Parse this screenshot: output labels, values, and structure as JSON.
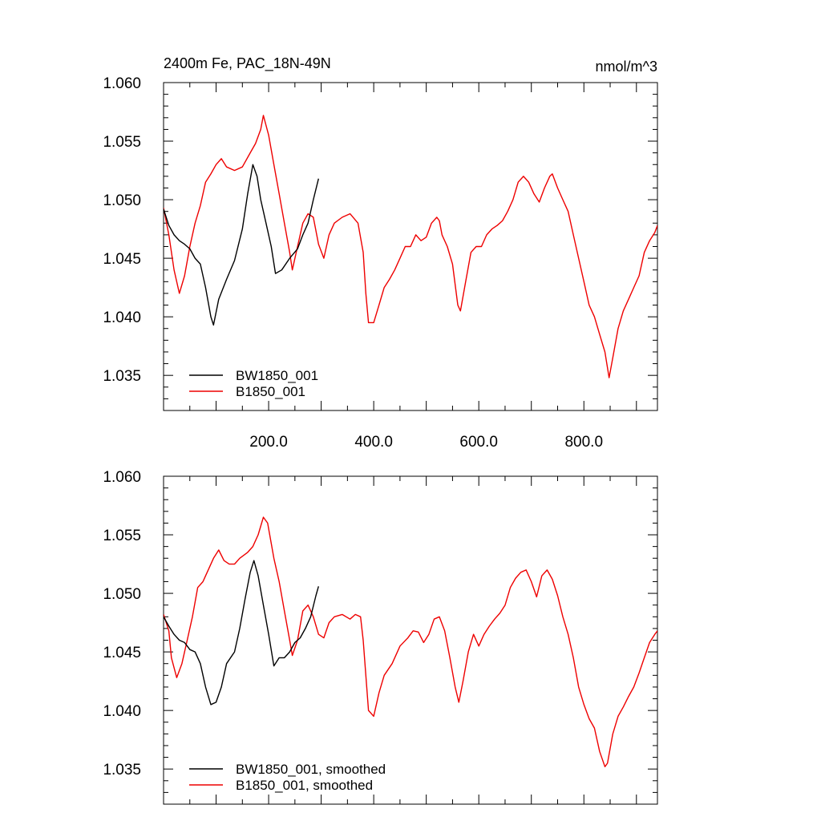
{
  "chart_data": [
    {
      "type": "line",
      "title": "2400m Fe, PAC_18N-49N",
      "units": "nmol/m^3",
      "xlim": [
        0,
        940
      ],
      "ylim": [
        1.032,
        1.06
      ],
      "x_ticks": [
        "200.0",
        "400.0",
        "600.0",
        "800.0"
      ],
      "x_tick_values": [
        200,
        400,
        600,
        800
      ],
      "y_ticks": [
        "1.035",
        "1.040",
        "1.045",
        "1.050",
        "1.055",
        "1.060"
      ],
      "y_tick_values": [
        1.035,
        1.04,
        1.045,
        1.05,
        1.055,
        1.06
      ],
      "legend": {
        "position": "bottom-left"
      },
      "series": [
        {
          "name": "BW1850_001",
          "color": "#000000",
          "points": [
            [
              0,
              1.0492
            ],
            [
              10,
              1.0478
            ],
            [
              20,
              1.047
            ],
            [
              30,
              1.0465
            ],
            [
              40,
              1.0462
            ],
            [
              50,
              1.0458
            ],
            [
              60,
              1.045
            ],
            [
              70,
              1.0445
            ],
            [
              80,
              1.0425
            ],
            [
              90,
              1.04
            ],
            [
              95,
              1.0393
            ],
            [
              105,
              1.0415
            ],
            [
              120,
              1.0432
            ],
            [
              135,
              1.0448
            ],
            [
              150,
              1.0475
            ],
            [
              160,
              1.0505
            ],
            [
              170,
              1.053
            ],
            [
              178,
              1.052
            ],
            [
              185,
              1.05
            ],
            [
              195,
              1.048
            ],
            [
              205,
              1.046
            ],
            [
              213,
              1.0437
            ],
            [
              225,
              1.044
            ],
            [
              240,
              1.045
            ],
            [
              255,
              1.0458
            ],
            [
              265,
              1.047
            ],
            [
              275,
              1.048
            ],
            [
              285,
              1.05
            ],
            [
              295,
              1.0518
            ]
          ]
        },
        {
          "name": "B1850_001",
          "color": "#ee0000",
          "points": [
            [
              0,
              1.0493
            ],
            [
              10,
              1.047
            ],
            [
              20,
              1.044
            ],
            [
              30,
              1.042
            ],
            [
              40,
              1.0435
            ],
            [
              50,
              1.046
            ],
            [
              60,
              1.048
            ],
            [
              70,
              1.0495
            ],
            [
              80,
              1.0515
            ],
            [
              90,
              1.0522
            ],
            [
              100,
              1.053
            ],
            [
              110,
              1.0535
            ],
            [
              120,
              1.0528
            ],
            [
              135,
              1.0525
            ],
            [
              150,
              1.0528
            ],
            [
              165,
              1.054
            ],
            [
              175,
              1.0548
            ],
            [
              185,
              1.056
            ],
            [
              190,
              1.0572
            ],
            [
              200,
              1.0555
            ],
            [
              210,
              1.053
            ],
            [
              220,
              1.0505
            ],
            [
              230,
              1.048
            ],
            [
              240,
              1.0455
            ],
            [
              245,
              1.044
            ],
            [
              255,
              1.046
            ],
            [
              265,
              1.048
            ],
            [
              275,
              1.0488
            ],
            [
              285,
              1.0485
            ],
            [
              295,
              1.0462
            ],
            [
              305,
              1.045
            ],
            [
              315,
              1.047
            ],
            [
              325,
              1.048
            ],
            [
              340,
              1.0485
            ],
            [
              355,
              1.0488
            ],
            [
              370,
              1.048
            ],
            [
              380,
              1.0455
            ],
            [
              385,
              1.042
            ],
            [
              390,
              1.0395
            ],
            [
              400,
              1.0395
            ],
            [
              410,
              1.041
            ],
            [
              420,
              1.0425
            ],
            [
              430,
              1.0432
            ],
            [
              440,
              1.044
            ],
            [
              450,
              1.045
            ],
            [
              460,
              1.046
            ],
            [
              470,
              1.046
            ],
            [
              480,
              1.047
            ],
            [
              490,
              1.0465
            ],
            [
              500,
              1.0468
            ],
            [
              510,
              1.048
            ],
            [
              520,
              1.0485
            ],
            [
              525,
              1.0482
            ],
            [
              530,
              1.047
            ],
            [
              540,
              1.046
            ],
            [
              550,
              1.0445
            ],
            [
              560,
              1.041
            ],
            [
              565,
              1.0405
            ],
            [
              575,
              1.043
            ],
            [
              585,
              1.0455
            ],
            [
              595,
              1.046
            ],
            [
              605,
              1.046
            ],
            [
              615,
              1.047
            ],
            [
              625,
              1.0475
            ],
            [
              635,
              1.0478
            ],
            [
              645,
              1.0482
            ],
            [
              655,
              1.049
            ],
            [
              665,
              1.05
            ],
            [
              675,
              1.0515
            ],
            [
              685,
              1.052
            ],
            [
              695,
              1.0515
            ],
            [
              705,
              1.0505
            ],
            [
              715,
              1.0498
            ],
            [
              725,
              1.051
            ],
            [
              735,
              1.052
            ],
            [
              740,
              1.0522
            ],
            [
              750,
              1.051
            ],
            [
              760,
              1.05
            ],
            [
              770,
              1.049
            ],
            [
              780,
              1.047
            ],
            [
              790,
              1.045
            ],
            [
              800,
              1.043
            ],
            [
              810,
              1.041
            ],
            [
              820,
              1.04
            ],
            [
              830,
              1.0385
            ],
            [
              840,
              1.037
            ],
            [
              848,
              1.0348
            ],
            [
              855,
              1.0365
            ],
            [
              865,
              1.039
            ],
            [
              875,
              1.0405
            ],
            [
              885,
              1.0415
            ],
            [
              895,
              1.0425
            ],
            [
              905,
              1.0435
            ],
            [
              915,
              1.0455
            ],
            [
              925,
              1.0465
            ],
            [
              935,
              1.0472
            ],
            [
              940,
              1.0478
            ]
          ]
        }
      ]
    },
    {
      "type": "line",
      "title": "",
      "xlim": [
        0,
        940
      ],
      "ylim": [
        1.032,
        1.06
      ],
      "x_ticks": [],
      "y_ticks": [
        "1.035",
        "1.040",
        "1.045",
        "1.050",
        "1.055",
        "1.060"
      ],
      "y_tick_values": [
        1.035,
        1.04,
        1.045,
        1.05,
        1.055,
        1.06
      ],
      "legend": {
        "position": "bottom-left"
      },
      "series": [
        {
          "name": "BW1850_001, smoothed",
          "color": "#000000",
          "points": [
            [
              0,
              1.048
            ],
            [
              10,
              1.0472
            ],
            [
              20,
              1.0465
            ],
            [
              30,
              1.046
            ],
            [
              40,
              1.0458
            ],
            [
              50,
              1.0452
            ],
            [
              60,
              1.045
            ],
            [
              70,
              1.044
            ],
            [
              80,
              1.042
            ],
            [
              90,
              1.0405
            ],
            [
              100,
              1.0407
            ],
            [
              110,
              1.042
            ],
            [
              120,
              1.044
            ],
            [
              135,
              1.045
            ],
            [
              145,
              1.047
            ],
            [
              155,
              1.0495
            ],
            [
              165,
              1.0518
            ],
            [
              172,
              1.0528
            ],
            [
              180,
              1.0515
            ],
            [
              190,
              1.049
            ],
            [
              200,
              1.0465
            ],
            [
              210,
              1.0438
            ],
            [
              220,
              1.0445
            ],
            [
              230,
              1.0445
            ],
            [
              240,
              1.045
            ],
            [
              250,
              1.0458
            ],
            [
              260,
              1.0462
            ],
            [
              270,
              1.047
            ],
            [
              280,
              1.048
            ],
            [
              290,
              1.0498
            ],
            [
              295,
              1.0506
            ]
          ]
        },
        {
          "name": "B1850_001, smoothed",
          "color": "#ee0000",
          "points": [
            [
              0,
              1.0482
            ],
            [
              10,
              1.0468
            ],
            [
              15,
              1.0445
            ],
            [
              25,
              1.0428
            ],
            [
              35,
              1.044
            ],
            [
              45,
              1.046
            ],
            [
              55,
              1.048
            ],
            [
              65,
              1.0505
            ],
            [
              75,
              1.051
            ],
            [
              85,
              1.052
            ],
            [
              95,
              1.053
            ],
            [
              105,
              1.0537
            ],
            [
              115,
              1.0528
            ],
            [
              125,
              1.0525
            ],
            [
              135,
              1.0525
            ],
            [
              145,
              1.053
            ],
            [
              160,
              1.0535
            ],
            [
              170,
              1.054
            ],
            [
              180,
              1.055
            ],
            [
              190,
              1.0565
            ],
            [
              198,
              1.056
            ],
            [
              210,
              1.053
            ],
            [
              220,
              1.051
            ],
            [
              230,
              1.0485
            ],
            [
              240,
              1.046
            ],
            [
              245,
              1.0447
            ],
            [
              255,
              1.046
            ],
            [
              265,
              1.0485
            ],
            [
              275,
              1.049
            ],
            [
              285,
              1.048
            ],
            [
              295,
              1.0465
            ],
            [
              305,
              1.0462
            ],
            [
              315,
              1.0475
            ],
            [
              325,
              1.048
            ],
            [
              340,
              1.0482
            ],
            [
              355,
              1.0478
            ],
            [
              365,
              1.0482
            ],
            [
              375,
              1.048
            ],
            [
              380,
              1.046
            ],
            [
              385,
              1.043
            ],
            [
              390,
              1.04
            ],
            [
              400,
              1.0395
            ],
            [
              410,
              1.0415
            ],
            [
              420,
              1.043
            ],
            [
              435,
              1.044
            ],
            [
              450,
              1.0455
            ],
            [
              465,
              1.0462
            ],
            [
              475,
              1.0468
            ],
            [
              485,
              1.0467
            ],
            [
              495,
              1.0458
            ],
            [
              505,
              1.0465
            ],
            [
              515,
              1.0478
            ],
            [
              525,
              1.048
            ],
            [
              535,
              1.0468
            ],
            [
              545,
              1.0445
            ],
            [
              555,
              1.042
            ],
            [
              562,
              1.0407
            ],
            [
              570,
              1.0425
            ],
            [
              580,
              1.045
            ],
            [
              590,
              1.0465
            ],
            [
              600,
              1.0455
            ],
            [
              610,
              1.0465
            ],
            [
              620,
              1.0472
            ],
            [
              630,
              1.0478
            ],
            [
              640,
              1.0483
            ],
            [
              650,
              1.049
            ],
            [
              660,
              1.0505
            ],
            [
              670,
              1.0513
            ],
            [
              680,
              1.0518
            ],
            [
              690,
              1.052
            ],
            [
              700,
              1.051
            ],
            [
              710,
              1.0497
            ],
            [
              720,
              1.0515
            ],
            [
              730,
              1.052
            ],
            [
              740,
              1.0512
            ],
            [
              750,
              1.0498
            ],
            [
              760,
              1.048
            ],
            [
              770,
              1.0465
            ],
            [
              780,
              1.0445
            ],
            [
              790,
              1.042
            ],
            [
              800,
              1.0405
            ],
            [
              810,
              1.0393
            ],
            [
              820,
              1.0385
            ],
            [
              830,
              1.0365
            ],
            [
              840,
              1.0352
            ],
            [
              845,
              1.0355
            ],
            [
              855,
              1.038
            ],
            [
              865,
              1.0395
            ],
            [
              875,
              1.0403
            ],
            [
              885,
              1.0412
            ],
            [
              895,
              1.042
            ],
            [
              905,
              1.0432
            ],
            [
              915,
              1.0445
            ],
            [
              925,
              1.0458
            ],
            [
              935,
              1.0465
            ],
            [
              940,
              1.0468
            ]
          ]
        }
      ]
    }
  ]
}
